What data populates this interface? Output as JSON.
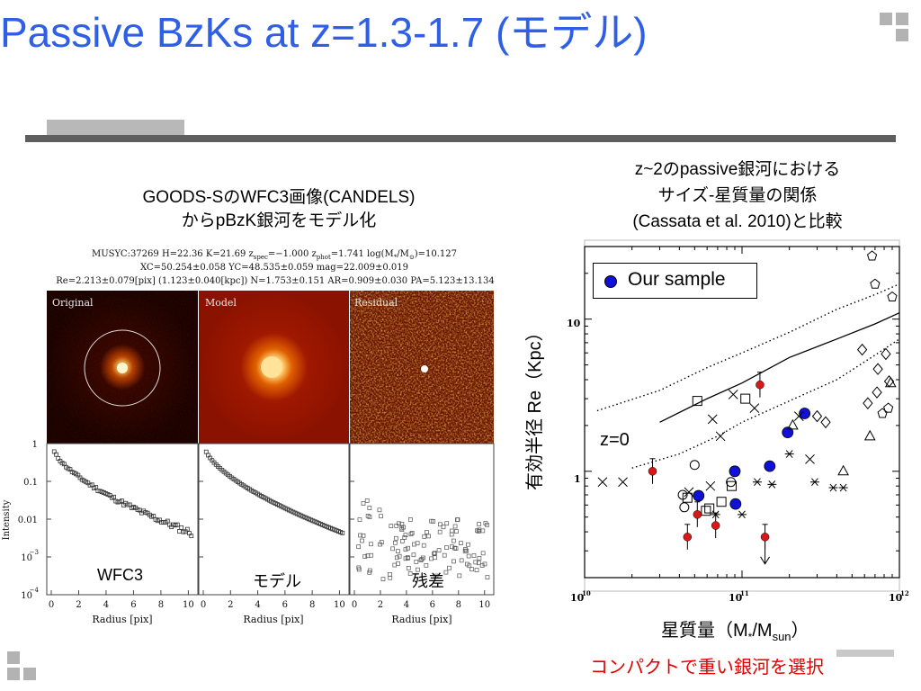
{
  "slide": {
    "title": "Passive BzKs at z=1.3-1.7 (モデル)"
  },
  "left": {
    "caption_line1": "GOODS-SのWFC3画像(CANDELS)",
    "caption_line2": "からpBzK銀河をモデル化",
    "fit_line1_a": "MUSYC:37269 H=22.36 K=21.69 z",
    "fit_line1_b": "spec",
    "fit_line1_c": "=−1.000 z",
    "fit_line1_d": "phot",
    "fit_line1_e": "=1.741 log(M",
    "fit_line1_f": "*",
    "fit_line1_g": "/M",
    "fit_line1_h": "⊙",
    "fit_line1_i": ")=10.127",
    "fit_line2": "XC=50.254±0.058 YC=48.535±0.059 mag=22.009±0.019",
    "fit_line3": "Re=2.213±0.079[pix] (1.123±0.040[kpc]) N=1.753±0.151 AR=0.909±0.030 PA=5.123±13.134",
    "image_labels": [
      "Original",
      "Model",
      "Residual"
    ],
    "panel_labels": [
      "WFC3",
      "モデル",
      "残差"
    ],
    "profile_ylabel": "Intensity",
    "profile_xlabel": "Radius [pix]",
    "profile_xticks": [
      "0",
      "2",
      "4",
      "6",
      "8",
      "10"
    ],
    "profile_yticks": [
      "1",
      "0.1",
      "0.01",
      "10",
      "10"
    ],
    "profile_ytick_exp": [
      "",
      "",
      "",
      "−3",
      "−4"
    ]
  },
  "right": {
    "caption_line1": "z~2のpassive銀河における",
    "caption_line2": "サイズ-星質量の関係",
    "caption_line3": "(Cassata et al. 2010)と比較",
    "legend": "Our sample",
    "z0_label": "z=0",
    "ylabel": "有効半径 Re（Kpc）",
    "xlabel_a": "星質量（M",
    "xlabel_b": "*",
    "xlabel_c": "/M",
    "xlabel_d": "sun",
    "xlabel_e": "）",
    "xticks": [
      "10",
      "10",
      "10"
    ],
    "xtick_exp": [
      "10",
      "11",
      "12"
    ],
    "yticks": [
      "10",
      "1"
    ],
    "note": "コンパクトで重い銀河を選択"
  },
  "colors": {
    "title": "#2e5fe6",
    "our_sample": "#1010d8",
    "red_points": "#d91818",
    "note": "#e00000"
  },
  "chart_data": {
    "type": "scatter",
    "xlabel": "星質量（M*/Msun）",
    "ylabel": "有効半径 Re（Kpc）",
    "xscale": "log",
    "yscale": "log",
    "xlim": [
      10000000000.0,
      1000000000000.0
    ],
    "ylim": [
      0.2,
      30
    ],
    "legend_position": "top-left",
    "series": [
      {
        "name": "Our sample",
        "marker": "filled-circle-blue",
        "x": [
          53000000000.0,
          90000000000.0,
          91000000000.0,
          150000000000.0,
          195000000000.0,
          250000000000.0
        ],
        "y": [
          0.69,
          1.0,
          0.61,
          1.08,
          1.8,
          2.4
        ]
      },
      {
        "marker": "filled-circle-red",
        "x": [
          27000000000.0,
          45000000000.0,
          52000000000.0,
          68000000000.0,
          130000000000.0,
          140000000000.0
        ],
        "y": [
          1.0,
          0.37,
          0.52,
          0.44,
          3.7,
          0.37
        ]
      },
      {
        "marker": "open-circle",
        "x": [
          42000000000.0,
          43000000000.0,
          50000000000.0,
          85000000000.0
        ],
        "y": [
          0.7,
          0.58,
          1.1,
          0.85
        ]
      },
      {
        "marker": "open-square",
        "x": [
          45000000000.0,
          52000000000.0,
          62000000000.0,
          74000000000.0,
          86000000000.0,
          105000000000.0,
          59000000000.0
        ],
        "y": [
          0.67,
          2.9,
          0.57,
          0.63,
          0.8,
          3.0,
          0.55
        ]
      },
      {
        "marker": "cross",
        "x": [
          13000000000.0,
          17500000000.0,
          46000000000.0,
          65000000000.0,
          73000000000.0,
          88000000000.0,
          120000000000.0,
          230000000000.0,
          270000000000.0,
          63000000000.0
        ],
        "y": [
          0.85,
          0.85,
          0.73,
          2.2,
          1.7,
          3.2,
          2.6,
          2.3,
          1.2,
          0.8
        ]
      },
      {
        "marker": "asterisk",
        "x": [
          68000000000.0,
          125000000000.0,
          155000000000.0,
          200000000000.0,
          290000000000.0,
          380000000000.0,
          440000000000.0,
          100000000000.0
        ],
        "y": [
          0.52,
          0.85,
          0.82,
          1.3,
          0.85,
          0.78,
          0.78,
          0.52
        ]
      },
      {
        "marker": "diamond",
        "x": [
          300000000000.0,
          340000000000.0,
          580000000000.0,
          630000000000.0,
          720000000000.0,
          860000000000.0,
          820000000000.0,
          730000000000.0
        ],
        "y": [
          2.3,
          2.1,
          6.3,
          2.8,
          3.3,
          3.9,
          5.9,
          4.7
        ]
      },
      {
        "marker": "triangle",
        "x": [
          210000000000.0,
          440000000000.0,
          880000000000.0,
          650000000000.0
        ],
        "y": [
          2.0,
          1.0,
          3.8,
          1.7
        ]
      },
      {
        "marker": "pentagon",
        "x": [
          670000000000.0,
          700000000000.0,
          780000000000.0,
          850000000000.0,
          900000000000.0
        ],
        "y": [
          26,
          17,
          2.4,
          2.6,
          14
        ]
      }
    ],
    "curves": [
      {
        "style": "solid",
        "x": [
          30000000000.0,
          60000000000.0,
          100000000000.0,
          200000000000.0,
          400000000000.0,
          700000000000.0,
          1000000000000.0
        ],
        "y": [
          2.1,
          3.0,
          3.8,
          5.6,
          7.4,
          9.3,
          11
        ]
      },
      {
        "style": "dotted-upper",
        "x": [
          12000000000.0,
          30000000000.0,
          60000000000.0,
          100000000000.0,
          200000000000.0,
          400000000000.0,
          700000000000.0,
          1000000000000.0
        ],
        "y": [
          2.5,
          3.4,
          4.8,
          6,
          8.2,
          11.6,
          14.5,
          17
        ]
      },
      {
        "style": "dotted-lower",
        "x": [
          20000000000.0,
          40000000000.0,
          70000000000.0,
          100000000000.0,
          200000000000.0,
          400000000000.0,
          700000000000.0,
          1000000000000.0
        ],
        "y": [
          1.05,
          1.3,
          1.7,
          2.1,
          2.9,
          4.0,
          5.8,
          7.4
        ]
      }
    ]
  }
}
